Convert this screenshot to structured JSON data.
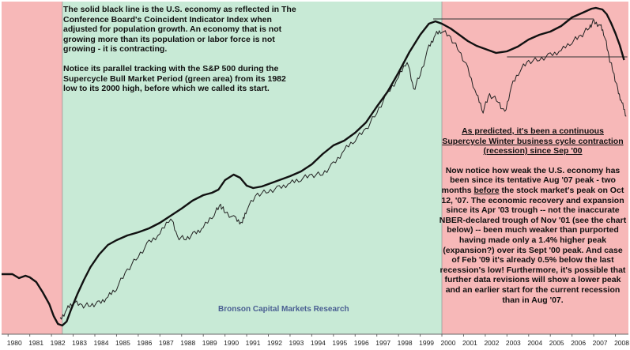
{
  "chart_data": {
    "type": "line",
    "x_tick_labels": [
      "1980",
      "1981",
      "1982",
      "1983",
      "1984",
      "1985",
      "1986",
      "1987",
      "1988",
      "1989",
      "1990",
      "1991",
      "1992",
      "1993",
      "1994",
      "1995",
      "1996",
      "1997",
      "1998",
      "1999",
      "2000",
      "2001",
      "2002",
      "2003",
      "2004",
      "2005",
      "2006",
      "2007",
      "2008"
    ],
    "x_range": [
      1979.7,
      2008.6
    ],
    "shaded_periods": [
      {
        "from": 1979.7,
        "to": 1982.5,
        "color": "#f7b8b8"
      },
      {
        "from": 1982.5,
        "to": 2000.0,
        "color": "#c8ead6"
      },
      {
        "from": 2000.0,
        "to": 2008.6,
        "color": "#f7b8b8"
      }
    ],
    "series": [
      {
        "color": "#111111",
        "points": [
          [
            1979.7,
            345
          ],
          [
            1980.2,
            345
          ],
          [
            1980.5,
            350
          ],
          [
            1980.8,
            347
          ],
          [
            1981.0,
            349
          ],
          [
            1981.3,
            355
          ],
          [
            1981.6,
            368
          ],
          [
            1981.9,
            383
          ],
          [
            1982.1,
            398
          ],
          [
            1982.3,
            408
          ],
          [
            1982.5,
            410
          ],
          [
            1982.7,
            405
          ],
          [
            1982.9,
            390
          ],
          [
            1983.2,
            370
          ],
          [
            1983.5,
            352
          ],
          [
            1983.8,
            336
          ],
          [
            1984.2,
            320
          ],
          [
            1984.6,
            308
          ],
          [
            1985.0,
            302
          ],
          [
            1985.5,
            296
          ],
          [
            1986.0,
            292
          ],
          [
            1986.5,
            287
          ],
          [
            1987.0,
            280
          ],
          [
            1987.5,
            271
          ],
          [
            1988.0,
            262
          ],
          [
            1988.5,
            252
          ],
          [
            1989.0,
            245
          ],
          [
            1989.4,
            242
          ],
          [
            1989.7,
            238
          ],
          [
            1990.0,
            226
          ],
          [
            1990.4,
            219
          ],
          [
            1990.7,
            223
          ],
          [
            1991.0,
            233
          ],
          [
            1991.3,
            236
          ],
          [
            1991.7,
            234
          ],
          [
            1992.0,
            231
          ],
          [
            1992.5,
            226
          ],
          [
            1993.0,
            221
          ],
          [
            1993.5,
            215
          ],
          [
            1994.0,
            206
          ],
          [
            1994.5,
            193
          ],
          [
            1995.0,
            182
          ],
          [
            1995.5,
            176
          ],
          [
            1996.0,
            166
          ],
          [
            1996.5,
            153
          ],
          [
            1997.0,
            133
          ],
          [
            1997.5,
            114
          ],
          [
            1998.0,
            90
          ],
          [
            1998.5,
            64
          ],
          [
            1999.0,
            42
          ],
          [
            1999.4,
            28
          ],
          [
            1999.7,
            25
          ],
          [
            2000.0,
            28
          ],
          [
            2000.4,
            34
          ],
          [
            2000.8,
            42
          ],
          [
            2001.2,
            50
          ],
          [
            2001.6,
            56
          ],
          [
            2002.0,
            60
          ],
          [
            2002.5,
            65
          ],
          [
            2003.0,
            63
          ],
          [
            2003.5,
            57
          ],
          [
            2004.0,
            48
          ],
          [
            2004.5,
            42
          ],
          [
            2005.0,
            38
          ],
          [
            2005.5,
            31
          ],
          [
            2006.0,
            20
          ],
          [
            2006.5,
            14
          ],
          [
            2006.9,
            9
          ],
          [
            2007.1,
            8
          ],
          [
            2007.4,
            10
          ],
          [
            2007.6,
            16
          ],
          [
            2007.8,
            27
          ],
          [
            2008.0,
            40
          ],
          [
            2008.2,
            55
          ],
          [
            2008.4,
            74
          ]
        ]
      },
      {
        "color": "#222222",
        "points": [
          [
            1982.4,
            403
          ],
          [
            1982.7,
            390
          ],
          [
            1983.0,
            380
          ],
          [
            1983.4,
            385
          ],
          [
            1983.8,
            384
          ],
          [
            1984.2,
            382
          ],
          [
            1984.6,
            374
          ],
          [
            1985.0,
            362
          ],
          [
            1985.5,
            340
          ],
          [
            1986.0,
            322
          ],
          [
            1986.5,
            305
          ],
          [
            1987.0,
            294
          ],
          [
            1987.5,
            272
          ],
          [
            1987.8,
            298
          ],
          [
            1988.2,
            300
          ],
          [
            1988.6,
            294
          ],
          [
            1989.0,
            286
          ],
          [
            1989.5,
            268
          ],
          [
            1989.8,
            258
          ],
          [
            1990.0,
            266
          ],
          [
            1990.5,
            276
          ],
          [
            1990.8,
            280
          ],
          [
            1991.0,
            262
          ],
          [
            1991.5,
            244
          ],
          [
            1992.0,
            240
          ],
          [
            1992.5,
            236
          ],
          [
            1993.0,
            230
          ],
          [
            1993.5,
            224
          ],
          [
            1994.0,
            220
          ],
          [
            1994.5,
            218
          ],
          [
            1995.0,
            206
          ],
          [
            1995.5,
            188
          ],
          [
            1996.0,
            174
          ],
          [
            1996.5,
            162
          ],
          [
            1997.0,
            140
          ],
          [
            1997.5,
            116
          ],
          [
            1998.0,
            96
          ],
          [
            1998.4,
            74
          ],
          [
            1998.7,
            112
          ],
          [
            1999.0,
            92
          ],
          [
            1999.4,
            58
          ],
          [
            1999.7,
            42
          ],
          [
            2000.0,
            36
          ],
          [
            2000.4,
            46
          ],
          [
            2000.8,
            62
          ],
          [
            2001.2,
            86
          ],
          [
            2001.6,
            118
          ],
          [
            2001.9,
            138
          ],
          [
            2002.2,
            118
          ],
          [
            2002.6,
            126
          ],
          [
            2002.9,
            142
          ],
          [
            2003.2,
            108
          ],
          [
            2003.6,
            86
          ],
          [
            2004.0,
            76
          ],
          [
            2004.5,
            73
          ],
          [
            2005.0,
            68
          ],
          [
            2005.5,
            62
          ],
          [
            2006.0,
            50
          ],
          [
            2006.4,
            44
          ],
          [
            2006.8,
            32
          ],
          [
            2007.0,
            26
          ],
          [
            2007.3,
            30
          ],
          [
            2007.5,
            42
          ],
          [
            2007.7,
            70
          ],
          [
            2007.9,
            88
          ],
          [
            2008.1,
            112
          ],
          [
            2008.3,
            128
          ],
          [
            2008.5,
            145
          ]
        ]
      }
    ],
    "reference_lines": [
      {
        "from": [
          1999.6,
          22
        ],
        "to": [
          2007.0,
          22
        ]
      },
      {
        "from": [
          2003.0,
          70
        ],
        "to": [
          2008.55,
          70
        ]
      }
    ]
  },
  "annotations": {
    "top_left": [
      "The solid black line is the U.S. economy as reflected in The Conference Board's Coincident Indicator Index when adjusted for population growth.  An economy that is not growing more than its population or labor force is not growing - it is contracting.",
      "Notice its parallel tracking with the S&P 500 during the Supercycle Bull Market Period (green area) from its 1982 low to its 2000 high, before which we called its start."
    ],
    "right_headline": "As predicted, it's been a continuous Supercycle Winter business cycle contraction (recession) since Sep '00",
    "right_body_1": "Now notice how weak the U.S. economy has been since its tentative Aug '07 peak - two months ",
    "right_body_before": "before",
    "right_body_2": " the stock market's peak on Oct 12, '07. The economic recovery and expansion since its Apr '03 trough -- not the inaccurate NBER-declared trough of Nov '01 (see the chart below) -- been much weaker than purported having made only  a 1.4% higher peak (expansion?) over its Sept '00 peak. And case of Feb '09 it's already 0.5% below the last recession's low!  Furthermore, it's possible that further data revisions will show a lower peak and an earlier start for the current recession than in Aug '07.",
    "watermark": "Bronson Capital Markets Research"
  }
}
